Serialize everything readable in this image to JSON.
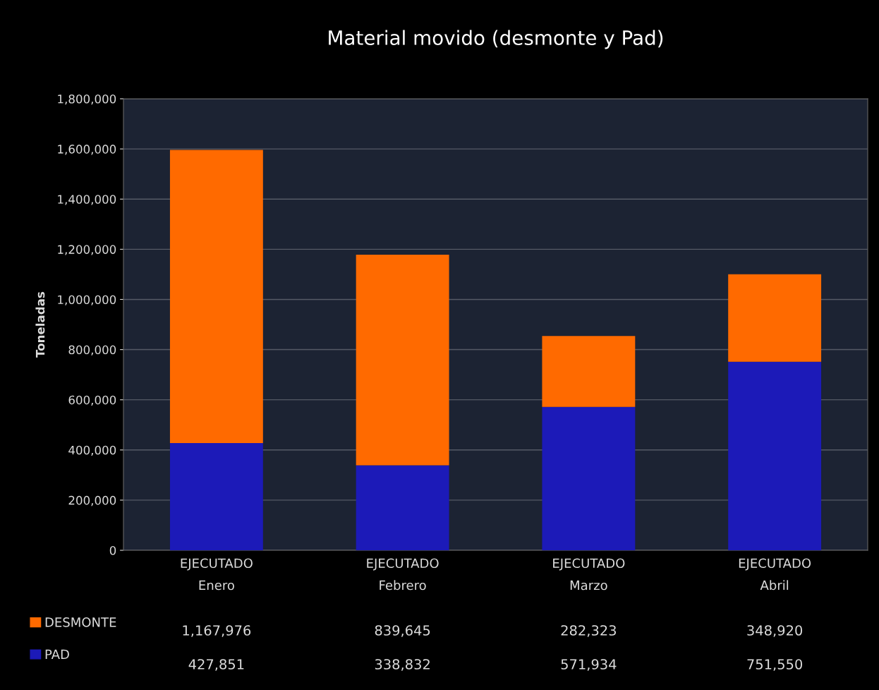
{
  "chart_data": {
    "type": "bar",
    "stacked": true,
    "title": "Material movido (desmonte y Pad)",
    "ylabel": "Toneladas",
    "categories": [
      "EJECUTADO\nEnero",
      "EJECUTADO\nFebrero",
      "EJECUTADO\nMarzo",
      "EJECUTADO\nAbril"
    ],
    "series": [
      {
        "name": "PAD",
        "color": "#1c1ab8",
        "values": [
          427851,
          338832,
          571934,
          751550
        ],
        "value_labels": [
          "427,851",
          "338,832",
          "571,934",
          "751,550"
        ]
      },
      {
        "name": "DESMONTE",
        "color": "#ff6a00",
        "values": [
          1167976,
          839645,
          282323,
          348920
        ],
        "value_labels": [
          "1,167,976",
          "839,645",
          "282,323",
          "348,920"
        ]
      }
    ],
    "ylim": [
      0,
      1800000
    ],
    "yticks": [
      0,
      {
        "value": 200000,
        "label": "200,000"
      },
      {
        "value": 400000,
        "label": "400,000"
      },
      {
        "value": 600000,
        "label": "600,000"
      },
      {
        "value": 800000,
        "label": "800,000"
      },
      {
        "value": 1000000,
        "label": "1,000,000"
      },
      {
        "value": 1200000,
        "label": "1,200,000"
      },
      {
        "value": 1400000,
        "label": "1,400,000"
      },
      {
        "value": 1600000,
        "label": "1,600,000"
      },
      {
        "value": 1800000,
        "label": "1,800,000"
      }
    ],
    "grid": "y",
    "legend": "bottom left"
  }
}
